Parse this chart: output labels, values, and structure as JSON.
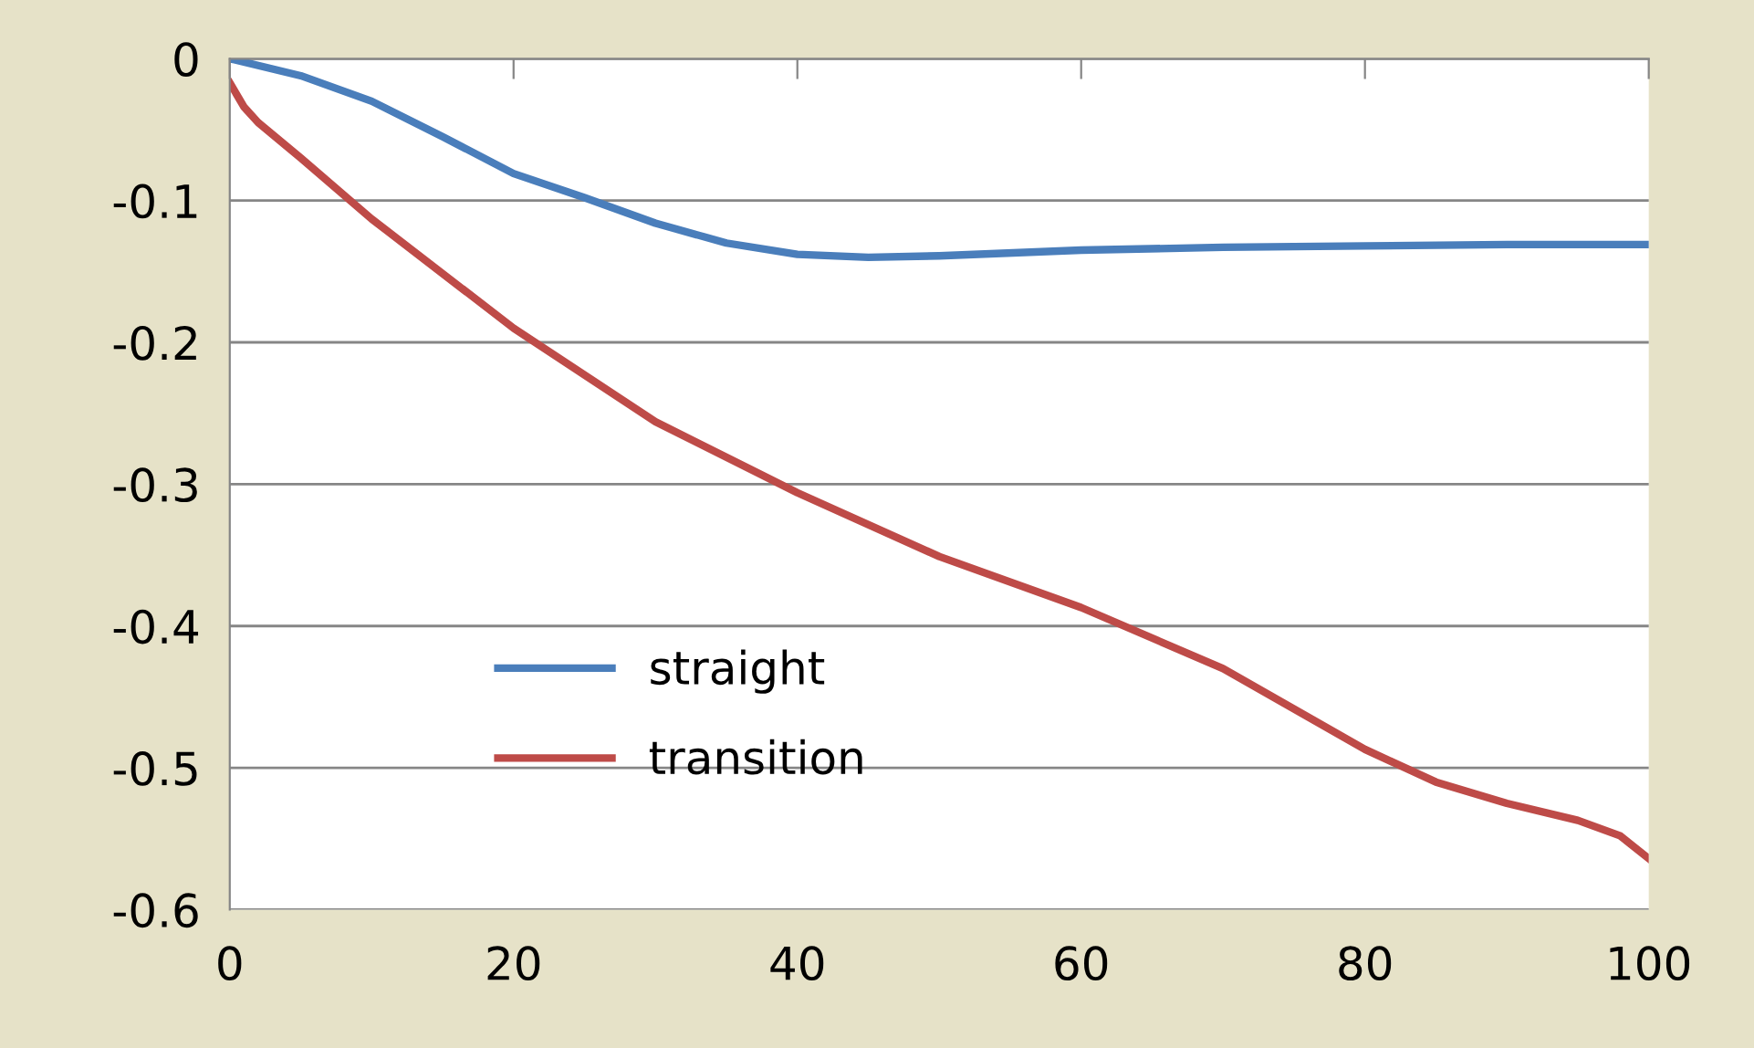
{
  "chart_data": {
    "type": "line",
    "xlim": [
      0,
      100
    ],
    "xticks": [
      0,
      20,
      40,
      60,
      80,
      100
    ],
    "ylim": [
      -0.6,
      0
    ],
    "yticks": [
      0,
      -0.1,
      -0.2,
      -0.3,
      -0.4,
      -0.5,
      -0.6
    ],
    "grid": "y",
    "legend": "bottom left",
    "marker": "none",
    "line_style": "solid",
    "series": [
      {
        "name": "straight",
        "color": "#4a7ebb",
        "x": [
          0,
          5,
          10,
          15,
          20,
          25,
          30,
          35,
          40,
          45,
          50,
          60,
          70,
          80,
          90,
          100
        ],
        "values": [
          0,
          -0.012,
          -0.03,
          -0.055,
          -0.081,
          -0.098,
          -0.116,
          -0.13,
          -0.138,
          -0.14,
          -0.139,
          -0.135,
          -0.133,
          -0.132,
          -0.131,
          -0.131
        ]
      },
      {
        "name": "transition",
        "color": "#be4b48",
        "x": [
          0,
          1,
          2,
          5,
          10,
          20,
          30,
          40,
          50,
          60,
          70,
          80,
          85,
          90,
          95,
          98,
          100
        ],
        "values": [
          -0.017,
          -0.034,
          -0.045,
          -0.07,
          -0.113,
          -0.19,
          -0.256,
          -0.306,
          -0.351,
          -0.387,
          -0.43,
          -0.487,
          -0.51,
          -0.525,
          -0.537,
          -0.548,
          -0.564
        ]
      }
    ]
  }
}
